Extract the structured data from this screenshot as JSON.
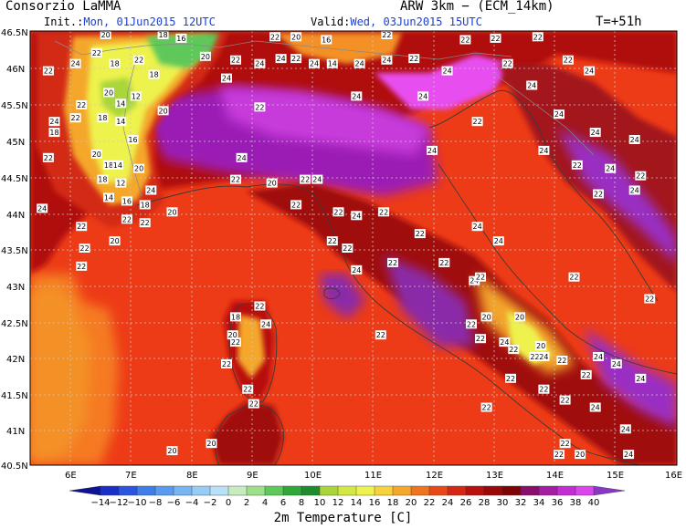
{
  "header": {
    "org": "Consorzio LaMMA",
    "model": "ARW 3km − (ECM_14km)",
    "init_label": "Init.:",
    "init_value": "Mon, 01Jun2015 12UTC",
    "valid_label": "Valid:",
    "valid_value": "Wed, 03Jun2015 15UTC",
    "lead": "T=+51h"
  },
  "map": {
    "lat_labels": [
      "46.5N",
      "46N",
      "45.5N",
      "45N",
      "44.5N",
      "44N",
      "43.5N",
      "43N",
      "42.5N",
      "42N",
      "41.5N",
      "41N",
      "40.5N"
    ],
    "lon_labels": [
      "6E",
      "7E",
      "8E",
      "9E",
      "10E",
      "11E",
      "12E",
      "13E",
      "14E",
      "15E",
      "16E"
    ],
    "temperature_labels": [
      {
        "v": "20",
        "lon": 6.75,
        "lat": 46.45
      },
      {
        "v": "18",
        "lon": 7.7,
        "lat": 46.45
      },
      {
        "v": "16",
        "lon": 8.0,
        "lat": 46.4
      },
      {
        "v": "22",
        "lon": 9.55,
        "lat": 46.42
      },
      {
        "v": "20",
        "lon": 9.9,
        "lat": 46.42
      },
      {
        "v": "16",
        "lon": 10.4,
        "lat": 46.38
      },
      {
        "v": "22",
        "lon": 11.4,
        "lat": 46.45
      },
      {
        "v": "22",
        "lon": 12.7,
        "lat": 46.38
      },
      {
        "v": "22",
        "lon": 13.2,
        "lat": 46.4
      },
      {
        "v": "22",
        "lon": 13.9,
        "lat": 46.42
      },
      {
        "v": "22",
        "lon": 6.6,
        "lat": 46.2
      },
      {
        "v": "24",
        "lon": 6.25,
        "lat": 46.05
      },
      {
        "v": "18",
        "lon": 6.9,
        "lat": 46.05
      },
      {
        "v": "22",
        "lon": 7.3,
        "lat": 46.1
      },
      {
        "v": "18",
        "lon": 7.55,
        "lat": 45.9
      },
      {
        "v": "20",
        "lon": 8.4,
        "lat": 46.15
      },
      {
        "v": "22",
        "lon": 8.9,
        "lat": 46.1
      },
      {
        "v": "24",
        "lon": 9.65,
        "lat": 46.12
      },
      {
        "v": "22",
        "lon": 9.9,
        "lat": 46.12
      },
      {
        "v": "24",
        "lon": 10.2,
        "lat": 46.05
      },
      {
        "v": "14",
        "lon": 10.5,
        "lat": 46.05
      },
      {
        "v": "24",
        "lon": 10.95,
        "lat": 46.05
      },
      {
        "v": "24",
        "lon": 11.4,
        "lat": 46.1
      },
      {
        "v": "22",
        "lon": 11.85,
        "lat": 46.12
      },
      {
        "v": "24",
        "lon": 9.3,
        "lat": 46.05
      },
      {
        "v": "24",
        "lon": 12.4,
        "lat": 45.95
      },
      {
        "v": "22",
        "lon": 13.4,
        "lat": 46.05
      },
      {
        "v": "22",
        "lon": 14.4,
        "lat": 46.1
      },
      {
        "v": "24",
        "lon": 14.75,
        "lat": 45.95
      },
      {
        "v": "22",
        "lon": 5.8,
        "lat": 45.95
      },
      {
        "v": "20",
        "lon": 6.8,
        "lat": 45.65
      },
      {
        "v": "12",
        "lon": 7.25,
        "lat": 45.6
      },
      {
        "v": "20",
        "lon": 7.7,
        "lat": 45.4
      },
      {
        "v": "14",
        "lon": 7.0,
        "lat": 45.5
      },
      {
        "v": "22",
        "lon": 6.35,
        "lat": 45.48
      },
      {
        "v": "22",
        "lon": 6.25,
        "lat": 45.3
      },
      {
        "v": "18",
        "lon": 6.7,
        "lat": 45.3
      },
      {
        "v": "24",
        "lon": 5.9,
        "lat": 45.25
      },
      {
        "v": "18",
        "lon": 5.9,
        "lat": 45.1
      },
      {
        "v": "14",
        "lon": 7.0,
        "lat": 45.25
      },
      {
        "v": "16",
        "lon": 7.2,
        "lat": 45.0
      },
      {
        "v": "20",
        "lon": 6.6,
        "lat": 44.8
      },
      {
        "v": "22",
        "lon": 5.8,
        "lat": 44.75
      },
      {
        "v": "18",
        "lon": 6.8,
        "lat": 44.65
      },
      {
        "v": "14",
        "lon": 6.95,
        "lat": 44.65
      },
      {
        "v": "20",
        "lon": 7.3,
        "lat": 44.6
      },
      {
        "v": "18",
        "lon": 6.7,
        "lat": 44.45
      },
      {
        "v": "12",
        "lon": 7.0,
        "lat": 44.4
      },
      {
        "v": "24",
        "lon": 7.5,
        "lat": 44.3
      },
      {
        "v": "14",
        "lon": 6.8,
        "lat": 44.2
      },
      {
        "v": "16",
        "lon": 7.1,
        "lat": 44.15
      },
      {
        "v": "18",
        "lon": 7.4,
        "lat": 44.1
      },
      {
        "v": "20",
        "lon": 7.85,
        "lat": 44.0
      },
      {
        "v": "22",
        "lon": 7.1,
        "lat": 43.9
      },
      {
        "v": "24",
        "lon": 5.7,
        "lat": 44.05
      },
      {
        "v": "22",
        "lon": 6.35,
        "lat": 43.8
      },
      {
        "v": "22",
        "lon": 7.4,
        "lat": 43.85
      },
      {
        "v": "20",
        "lon": 6.9,
        "lat": 43.6
      },
      {
        "v": "22",
        "lon": 6.4,
        "lat": 43.5
      },
      {
        "v": "22",
        "lon": 6.35,
        "lat": 43.25
      },
      {
        "v": "24",
        "lon": 8.75,
        "lat": 45.85
      },
      {
        "v": "22",
        "lon": 9.3,
        "lat": 45.45
      },
      {
        "v": "24",
        "lon": 10.9,
        "lat": 45.6
      },
      {
        "v": "24",
        "lon": 13.8,
        "lat": 45.75
      },
      {
        "v": "22",
        "lon": 12.9,
        "lat": 45.25
      },
      {
        "v": "24",
        "lon": 14.25,
        "lat": 45.35
      },
      {
        "v": "24",
        "lon": 14.85,
        "lat": 45.1
      },
      {
        "v": "24",
        "lon": 15.5,
        "lat": 45.0
      },
      {
        "v": "24",
        "lon": 14.0,
        "lat": 44.85
      },
      {
        "v": "22",
        "lon": 14.55,
        "lat": 44.65
      },
      {
        "v": "24",
        "lon": 15.1,
        "lat": 44.6
      },
      {
        "v": "22",
        "lon": 15.6,
        "lat": 44.5
      },
      {
        "v": "24",
        "lon": 15.5,
        "lat": 44.3
      },
      {
        "v": "22",
        "lon": 14.9,
        "lat": 44.25
      },
      {
        "v": "24",
        "lon": 12.15,
        "lat": 44.85
      },
      {
        "v": "24",
        "lon": 9.0,
        "lat": 44.75
      },
      {
        "v": "22",
        "lon": 8.9,
        "lat": 44.45
      },
      {
        "v": "20",
        "lon": 9.5,
        "lat": 44.4
      },
      {
        "v": "22",
        "lon": 10.05,
        "lat": 44.45
      },
      {
        "v": "24",
        "lon": 10.25,
        "lat": 44.45
      },
      {
        "v": "22",
        "lon": 9.9,
        "lat": 44.1
      },
      {
        "v": "22",
        "lon": 10.6,
        "lat": 44.0
      },
      {
        "v": "24",
        "lon": 10.9,
        "lat": 43.95
      },
      {
        "v": "22",
        "lon": 11.35,
        "lat": 44.0
      },
      {
        "v": "22",
        "lon": 11.95,
        "lat": 43.7
      },
      {
        "v": "24",
        "lon": 12.9,
        "lat": 43.8
      },
      {
        "v": "24",
        "lon": 13.25,
        "lat": 43.6
      },
      {
        "v": "22",
        "lon": 10.5,
        "lat": 43.6
      },
      {
        "v": "22",
        "lon": 10.75,
        "lat": 43.5
      },
      {
        "v": "24",
        "lon": 10.9,
        "lat": 43.2
      },
      {
        "v": "22",
        "lon": 11.5,
        "lat": 43.3
      },
      {
        "v": "22",
        "lon": 12.35,
        "lat": 43.3
      },
      {
        "v": "24",
        "lon": 12.85,
        "lat": 43.05
      },
      {
        "v": "22",
        "lon": 12.95,
        "lat": 43.1
      },
      {
        "v": "22",
        "lon": 14.5,
        "lat": 43.1
      },
      {
        "v": "22",
        "lon": 15.75,
        "lat": 42.8
      },
      {
        "v": "18",
        "lon": 8.9,
        "lat": 42.55
      },
      {
        "v": "22",
        "lon": 9.3,
        "lat": 42.7
      },
      {
        "v": "24",
        "lon": 9.4,
        "lat": 42.45
      },
      {
        "v": "20",
        "lon": 8.85,
        "lat": 42.3
      },
      {
        "v": "22",
        "lon": 8.9,
        "lat": 42.2
      },
      {
        "v": "22",
        "lon": 8.75,
        "lat": 41.9
      },
      {
        "v": "22",
        "lon": 9.1,
        "lat": 41.55
      },
      {
        "v": "22",
        "lon": 9.2,
        "lat": 41.35
      },
      {
        "v": "22",
        "lon": 11.3,
        "lat": 42.3
      },
      {
        "v": "22",
        "lon": 12.8,
        "lat": 42.45
      },
      {
        "v": "20",
        "lon": 13.05,
        "lat": 42.55
      },
      {
        "v": "22",
        "lon": 12.95,
        "lat": 42.25
      },
      {
        "v": "24",
        "lon": 13.35,
        "lat": 42.2
      },
      {
        "v": "20",
        "lon": 13.6,
        "lat": 42.55
      },
      {
        "v": "20",
        "lon": 13.95,
        "lat": 42.15
      },
      {
        "v": "22",
        "lon": 13.5,
        "lat": 42.1
      },
      {
        "v": "22",
        "lon": 13.85,
        "lat": 42.0
      },
      {
        "v": "24",
        "lon": 14.0,
        "lat": 42.0
      },
      {
        "v": "22",
        "lon": 14.3,
        "lat": 41.95
      },
      {
        "v": "24",
        "lon": 14.9,
        "lat": 42.0
      },
      {
        "v": "24",
        "lon": 15.2,
        "lat": 41.9
      },
      {
        "v": "22",
        "lon": 14.7,
        "lat": 41.75
      },
      {
        "v": "22",
        "lon": 13.45,
        "lat": 41.7
      },
      {
        "v": "22",
        "lon": 14.0,
        "lat": 41.55
      },
      {
        "v": "22",
        "lon": 14.35,
        "lat": 41.4
      },
      {
        "v": "24",
        "lon": 15.6,
        "lat": 41.7
      },
      {
        "v": "22",
        "lon": 13.05,
        "lat": 41.3
      },
      {
        "v": "24",
        "lon": 14.85,
        "lat": 41.3
      },
      {
        "v": "24",
        "lon": 15.35,
        "lat": 41.0
      },
      {
        "v": "22",
        "lon": 14.35,
        "lat": 40.8
      },
      {
        "v": "24",
        "lon": 15.4,
        "lat": 40.65
      },
      {
        "v": "20",
        "lon": 14.6,
        "lat": 40.65
      },
      {
        "v": "22",
        "lon": 14.25,
        "lat": 40.65
      },
      {
        "v": "20",
        "lon": 7.85,
        "lat": 40.7
      },
      {
        "v": "20",
        "lon": 8.5,
        "lat": 40.8
      },
      {
        "v": "24",
        "lon": 12.0,
        "lat": 45.6
      }
    ]
  },
  "colorbar": {
    "labels": [
      "−14",
      "−12",
      "−10",
      "−8",
      "−6",
      "−4",
      "−2",
      "0",
      "2",
      "4",
      "6",
      "8",
      "10",
      "12",
      "14",
      "16",
      "18",
      "20",
      "22",
      "24",
      "26",
      "28",
      "30",
      "32",
      "34",
      "36",
      "38",
      "40"
    ],
    "colors": [
      "#0d1296",
      "#1a2fc8",
      "#2a55e0",
      "#3f7de8",
      "#5b9bef",
      "#79b5f2",
      "#97cdf5",
      "#b8e1f7",
      "#c6ecc0",
      "#9ee08a",
      "#5fc85a",
      "#2fa83a",
      "#1e8c2c",
      "#a8d63a",
      "#d3e845",
      "#eef24e",
      "#f8d23d",
      "#f4a72b",
      "#ee7420",
      "#e84818",
      "#d42812",
      "#b8100c",
      "#9a0808",
      "#7e0404",
      "#8a0e6c",
      "#a41ea4",
      "#c22ed2",
      "#d946ec",
      "#8a36c8"
    ],
    "title": "2m Temperature [C]"
  }
}
